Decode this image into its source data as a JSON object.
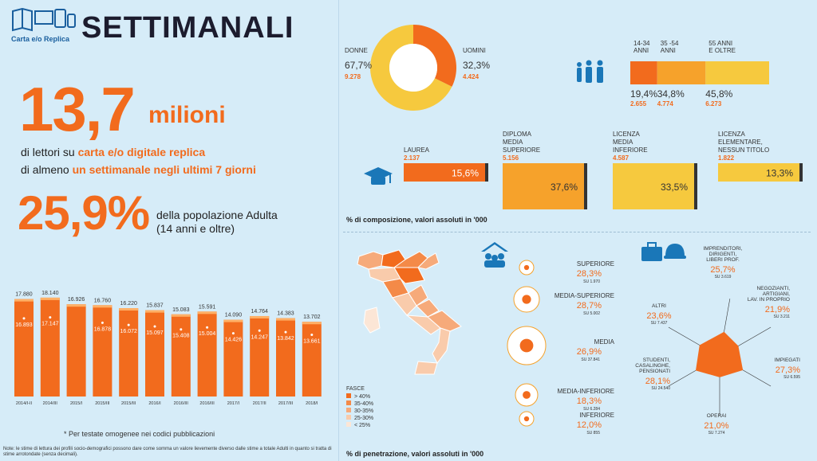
{
  "header": {
    "logo_text": "Carta e/o Replica",
    "title": "SETTIMANALI",
    "colors": {
      "accent": "#f26b1d",
      "accent_light": "#f6a22b",
      "yellow": "#f6c93e",
      "bg": "#d6ecf8"
    }
  },
  "headline": {
    "number": "13,7",
    "unit": "milioni",
    "line1_a": "di lettori su ",
    "line1_b": "carta e/o digitale replica",
    "line2_a": "di almeno ",
    "line2_b": "un",
    "line2_c": " settimanale negli ultimi 7 giorni",
    "pct": "25,9%",
    "pct_desc1": "della popolazione Adulta",
    "pct_desc2": "(14 anni e oltre)"
  },
  "chart_data": [
    {
      "type": "bar",
      "categories": [
        "2014/I-II",
        "2014/III",
        "2015/I",
        "2015/III",
        "2015/III",
        "2016/I",
        "2016/III",
        "2016/III",
        "2017/I",
        "2017/II",
        "2017/III",
        "2018/I"
      ],
      "series": [
        {
          "values": [
            17880,
            18140,
            16926,
            16760,
            16220,
            15837,
            15083,
            15591,
            14090,
            14764,
            14383,
            13702
          ]
        },
        {
          "values": [
            16893,
            17147,
            null,
            16878,
            16072,
            15097,
            15408,
            15004,
            14426,
            14247,
            13842,
            13661
          ]
        }
      ],
      "labels_top": [
        "17.880",
        "18.140",
        "16.926",
        "16.760",
        "16.220",
        "15.837",
        "15.083",
        "15.591",
        "14.090",
        "14.764",
        "14.383",
        "13.702"
      ],
      "labels_inner": [
        "16.893",
        "17.147",
        "",
        "16.878",
        "16.072",
        "15.097",
        "15.408",
        "15.004",
        "14.426",
        "14.247",
        "13.842",
        "13.661"
      ],
      "ylim": [
        0,
        19000
      ],
      "footnote": "* Per testate omogenee nei codici pubblicazioni"
    },
    {
      "type": "pie",
      "categories": [
        "DONNE",
        "UOMINI"
      ],
      "values": [
        67.7,
        32.3
      ],
      "labels_pct": [
        "67,7%",
        "32,3%"
      ],
      "labels_abs": [
        "9.278",
        "4.424"
      ]
    },
    {
      "type": "bar",
      "categories": [
        "14-34 ANNI",
        "35 -54 ANNI",
        "55 ANNI E OLTRE"
      ],
      "values": [
        19.4,
        34.8,
        45.8
      ],
      "labels_pct": [
        "19,4%",
        "34,8%",
        "45,8%"
      ],
      "labels_abs": [
        "2.655",
        "4.774",
        "6.273"
      ]
    },
    {
      "type": "bar",
      "categories": [
        "LAUREA",
        "DIPLOMA MEDIA SUPERIORE",
        "LICENZA MEDIA INFERIORE",
        "LICENZA ELEMENTARE, NESSUN TITOLO"
      ],
      "values": [
        15.6,
        37.6,
        33.5,
        13.3
      ],
      "labels_pct": [
        "15,6%",
        "37,6%",
        "33,5%",
        "13,3%"
      ],
      "labels_abs": [
        "2.137",
        "5.156",
        "4.587",
        "1.822"
      ],
      "caption": "% di composizione, valori assoluti in '000"
    },
    {
      "type": "bubble",
      "categories": [
        "SUPERIORE",
        "MEDIA-SUPERIORE",
        "MEDIA",
        "MEDIA-INFERIORE",
        "INFERIORE"
      ],
      "values": [
        28.3,
        28.7,
        26.9,
        18.3,
        12.0
      ],
      "labels_pct": [
        "28,3%",
        "28,7%",
        "26,9%",
        "18,3%",
        "12,0%"
      ],
      "labels_su": [
        "SU 1.970",
        "SU 5.002",
        "SU 37.841",
        "SU 6.284",
        "SU 855"
      ]
    },
    {
      "type": "radar",
      "categories": [
        "IMPRENDITORI, DIRIGENTI, LIBERI PROF.",
        "NEGOZIANTI, ARTIGIANI, LAV. IN PROPRIO",
        "IMPIEGATI",
        "OPERAI",
        "STUDENTI, CASALINGHE, PENSIONATI",
        "ALTRI"
      ],
      "values": [
        25.7,
        21.9,
        27.3,
        21.0,
        28.1,
        23.6
      ],
      "labels_pct": [
        "25,7%",
        "21,9%",
        "27,3%",
        "21,0%",
        "28,1%",
        "23,6%"
      ],
      "labels_su": [
        "SU 3.619",
        "SU 3.211",
        "SU 6.595",
        "SU 7.274",
        "SU 24.540",
        "SU 7.437"
      ],
      "caption": "% di penetrazione, valori assoluti in '000"
    }
  ],
  "map": {
    "legend_title": "FASCE",
    "legend_items": [
      {
        "label": "> 40%",
        "color": "#f26b1d"
      },
      {
        "label": "35-40%",
        "color": "#f48a48"
      },
      {
        "label": "30-35%",
        "color": "#f6aa7a"
      },
      {
        "label": "25-30%",
        "color": "#f9cbab"
      },
      {
        "label": "< 25%",
        "color": "#fce6d6"
      }
    ]
  },
  "notes": {
    "bottom": "Note: le stime di lettura dei profili socio-demografici possono dare come somma un valore lievemente diverso dalle stime a totale Adulti in quanto si tratta di stime arrotondate (senza decimali)."
  }
}
